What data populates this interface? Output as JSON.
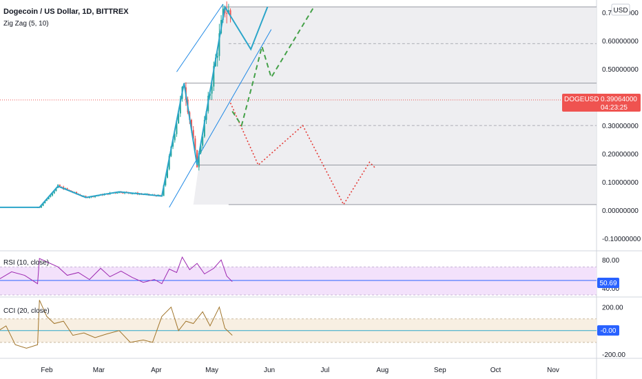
{
  "header": {
    "title": "Dogecoin / US Dollar, 1D, BITTREX",
    "indicator": "Zig Zag (5, 10)",
    "currency": "USD"
  },
  "colors": {
    "zigzag": "#2ba5c9",
    "channel": "#1e88e5",
    "red_projection": "#e53935",
    "green_projection": "#43a047",
    "candle_up": "#26a69a",
    "candle_down": "#ef5350",
    "rsi": "#9c27b0",
    "cci": "#a0742a",
    "rsi_band": "#f3e1fb",
    "cci_band": "#f8efe2",
    "price_badge": "#ef5350",
    "rsi_badge": "#2962ff",
    "cci_badge": "#2962ff"
  },
  "price_badge": {
    "symbol": "DOGEUSD",
    "price": "0.39064000",
    "countdown": "04:23:25"
  },
  "chart_data": [
    {
      "type": "line",
      "title": "Dogecoin / US Dollar, 1D, BITTREX",
      "x_axis": [
        "Feb",
        "Mar",
        "Apr",
        "May",
        "Jun",
        "Jul",
        "Aug",
        "Sep",
        "Oct",
        "Nov"
      ],
      "y_ticks": [
        "0.70000000",
        "0.60000000",
        "0.50000000",
        "0.30000000",
        "0.20000000",
        "0.10000000",
        "0.00000000",
        "-0.10000000"
      ],
      "ylim": [
        -0.1,
        0.72
      ],
      "last_price": 0.39064,
      "series": [
        {
          "role": "zigzag",
          "x": [
            "2021-01-01",
            "2021-01-28",
            "2021-02-07",
            "2021-02-22",
            "2021-03-12",
            "2021-04-04",
            "2021-04-16",
            "2021-04-23",
            "2021-05-08",
            "2021-05-22",
            "2021-05-31"
          ],
          "values": [
            0.01,
            0.01,
            0.085,
            0.045,
            0.065,
            0.05,
            0.45,
            0.16,
            0.72,
            0.57,
            0.72
          ]
        },
        {
          "role": "red_projection",
          "x": [
            "2021-05-11",
            "2021-05-26",
            "2021-06-19",
            "2021-07-11",
            "2021-07-25",
            "2021-07-28"
          ],
          "values": [
            0.38,
            0.16,
            0.3,
            0.02,
            0.17,
            0.15
          ]
        },
        {
          "role": "green_projection",
          "x": [
            "2021-05-12",
            "2021-05-17",
            "2021-05-23",
            "2021-05-28",
            "2021-06-02",
            "2021-06-25"
          ],
          "values": [
            0.35,
            0.3,
            0.45,
            0.58,
            0.47,
            0.72
          ]
        },
        {
          "role": "channel_upper",
          "x": [
            "2021-04-12",
            "2021-05-07"
          ],
          "values": [
            0.49,
            0.73
          ]
        },
        {
          "role": "channel_lower",
          "x": [
            "2021-04-08",
            "2021-06-02"
          ],
          "values": [
            0.01,
            0.64
          ]
        }
      ],
      "levels": [
        0.72,
        0.59,
        0.45,
        0.3,
        0.16,
        0.02
      ]
    },
    {
      "type": "line",
      "title": "RSI (10, close)",
      "y_ticks": [
        "80.00",
        "40.00"
      ],
      "band": [
        30,
        70
      ],
      "ylim": [
        28,
        92
      ],
      "current_value": "50.69",
      "series": [
        {
          "role": "rsi",
          "x": [
            "2021-01-01",
            "2021-01-06",
            "2021-01-13",
            "2021-01-20",
            "2021-01-27",
            "2021-01-28",
            "2021-02-02",
            "2021-02-07",
            "2021-02-12",
            "2021-02-18",
            "2021-02-24",
            "2021-03-02",
            "2021-03-07",
            "2021-03-13",
            "2021-03-19",
            "2021-03-25",
            "2021-03-31",
            "2021-04-04",
            "2021-04-08",
            "2021-04-12",
            "2021-04-15",
            "2021-04-19",
            "2021-04-23",
            "2021-04-27",
            "2021-05-02",
            "2021-05-06",
            "2021-05-09",
            "2021-05-12"
          ],
          "values": [
            62,
            52,
            63,
            58,
            46,
            82,
            76,
            70,
            58,
            62,
            52,
            68,
            56,
            64,
            55,
            48,
            52,
            46,
            67,
            62,
            84,
            66,
            75,
            60,
            68,
            80,
            57,
            49
          ]
        }
      ]
    },
    {
      "type": "line",
      "title": "CCI (20, close)",
      "y_ticks": [
        "200.00",
        "-200.00"
      ],
      "band": [
        -100,
        100
      ],
      "ylim": [
        -230,
        280
      ],
      "current_value": "-0.00",
      "series": [
        {
          "role": "cci",
          "x": [
            "2021-01-01",
            "2021-01-05",
            "2021-01-10",
            "2021-01-15",
            "2021-01-21",
            "2021-01-27",
            "2021-01-28",
            "2021-02-01",
            "2021-02-05",
            "2021-02-10",
            "2021-02-15",
            "2021-02-21",
            "2021-02-27",
            "2021-03-05",
            "2021-03-12",
            "2021-03-18",
            "2021-03-25",
            "2021-03-30",
            "2021-04-04",
            "2021-04-09",
            "2021-04-13",
            "2021-04-17",
            "2021-04-21",
            "2021-04-26",
            "2021-04-30",
            "2021-05-05",
            "2021-05-08",
            "2021-05-12"
          ],
          "values": [
            40,
            -10,
            40,
            -120,
            -150,
            -120,
            260,
            120,
            60,
            80,
            -40,
            -20,
            -60,
            -30,
            0,
            -100,
            -80,
            -100,
            120,
            200,
            0,
            80,
            60,
            160,
            40,
            200,
            20,
            -40
          ]
        }
      ]
    }
  ]
}
